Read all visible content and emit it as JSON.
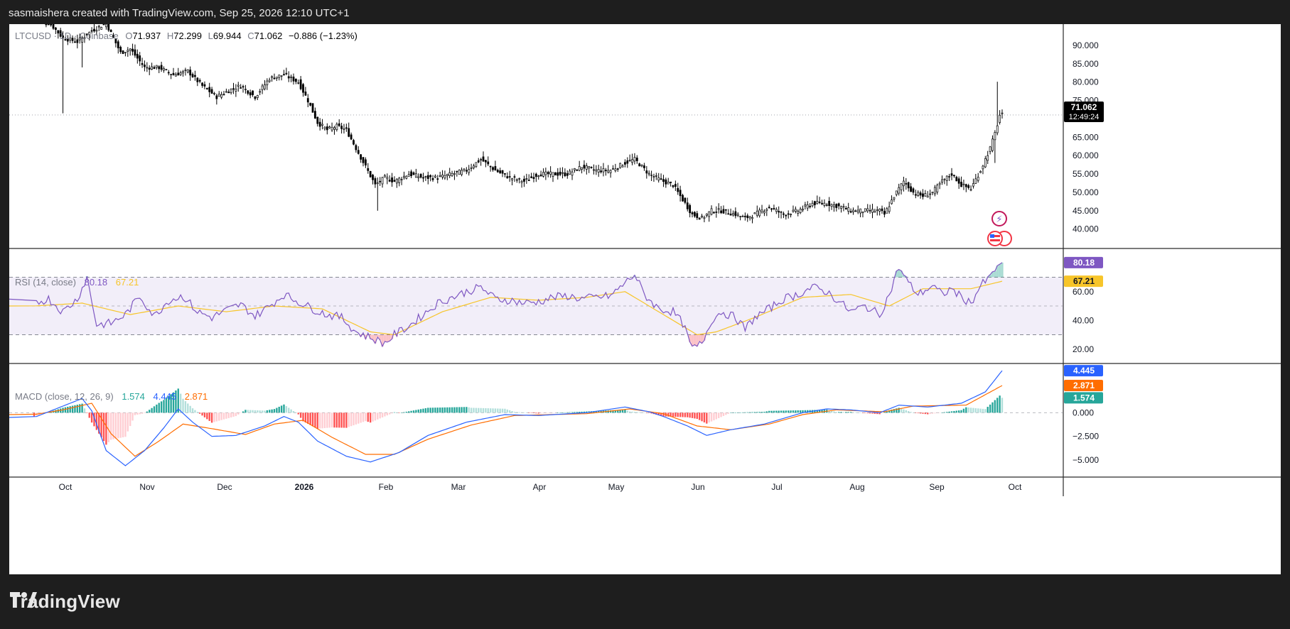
{
  "header": {
    "caption": "sasmaishera created with TradingView.com, Sep 25, 2026 12:10 UTC+1"
  },
  "brand": {
    "logo_text": "TradingView",
    "icon": "tradingview-logo-icon"
  },
  "legend": {
    "symbol": "LTCUSD · 1D · Coinbase",
    "o_label": "O",
    "o": "71.937",
    "h_label": "H",
    "h": "72.299",
    "l_label": "L",
    "l": "69.944",
    "c_label": "C",
    "c": "71.062",
    "change": "−0.886 (−1.23%)"
  },
  "price_tag": {
    "value": "71.062",
    "countdown": "12:49:24"
  },
  "rsi_legend": {
    "label": "RSI (14, close)",
    "rsi": "80.18",
    "ma": "67.21"
  },
  "macd_legend": {
    "label": "MACD (close, 12, 26, 9)",
    "hist": "1.574",
    "macd": "4.445",
    "signal": "2.871"
  },
  "colors": {
    "up": "#089981",
    "down": "#f23645",
    "candle": "#000000",
    "rsi": "#7e57c2",
    "rsi_ma": "#f7c52a",
    "macd": "#2962ff",
    "signal": "#ff6d00",
    "hist_up_strong": "#26a69a",
    "hist_up_weak": "#b2dfdb",
    "hist_down_strong": "#ff5252",
    "hist_down_weak": "#ffcdd2"
  },
  "chart_data": [
    {
      "type": "candlestick",
      "title": "LTCUSD · 1D · Coinbase",
      "x_axis": [
        "Oct",
        "Nov",
        "Dec",
        "2026",
        "Feb",
        "Mar",
        "Apr",
        "May",
        "Jun",
        "Jul",
        "Aug",
        "Sep",
        "Oct"
      ],
      "y_ticks": [
        "90.000",
        "85.000",
        "80.000",
        "75.000",
        "70.000",
        "65.000",
        "60.000",
        "55.000",
        "50.000",
        "45.000",
        "40.000"
      ],
      "ylim": [
        35.5,
        95
      ],
      "last_price": 71.062,
      "series": [
        {
          "name": "LTCUSD",
          "close_anchors": [
            [
              0,
              100
            ],
            [
              8,
              95
            ],
            [
              12,
              92
            ],
            [
              18,
              91
            ],
            [
              24,
              94
            ],
            [
              30,
              96
            ],
            [
              36,
              88
            ],
            [
              40,
              89
            ],
            [
              46,
              84
            ],
            [
              52,
              84
            ],
            [
              58,
              82
            ],
            [
              64,
              83
            ],
            [
              70,
              79
            ],
            [
              76,
              76
            ],
            [
              82,
              78
            ],
            [
              86,
              79
            ],
            [
              92,
              76
            ],
            [
              98,
              81
            ],
            [
              104,
              82
            ],
            [
              110,
              80
            ],
            [
              114,
              75
            ],
            [
              118,
              69
            ],
            [
              122,
              67
            ],
            [
              126,
              68
            ],
            [
              130,
              67
            ],
            [
              134,
              62
            ],
            [
              138,
              57
            ],
            [
              142,
              52
            ],
            [
              146,
              54
            ],
            [
              150,
              53
            ],
            [
              156,
              55
            ],
            [
              162,
              54
            ],
            [
              168,
              54
            ],
            [
              174,
              55
            ],
            [
              180,
              56
            ],
            [
              186,
              59
            ],
            [
              192,
              56
            ],
            [
              198,
              54
            ],
            [
              204,
              53
            ],
            [
              210,
              55
            ],
            [
              216,
              55
            ],
            [
              222,
              55
            ],
            [
              228,
              57
            ],
            [
              234,
              56
            ],
            [
              240,
              56
            ],
            [
              246,
              58
            ],
            [
              250,
              59
            ],
            [
              256,
              55
            ],
            [
              262,
              53
            ],
            [
              266,
              52
            ],
            [
              270,
              48
            ],
            [
              274,
              44
            ],
            [
              278,
              43
            ],
            [
              282,
              45
            ],
            [
              286,
              45
            ],
            [
              292,
              44
            ],
            [
              296,
              43
            ],
            [
              300,
              44
            ],
            [
              306,
              46
            ],
            [
              312,
              44
            ],
            [
              318,
              45
            ],
            [
              324,
              47
            ],
            [
              330,
              47
            ],
            [
              336,
              46
            ],
            [
              340,
              45
            ],
            [
              346,
              45
            ],
            [
              352,
              45
            ],
            [
              354,
              44
            ],
            [
              358,
              49
            ],
            [
              362,
              53
            ],
            [
              366,
              50
            ],
            [
              370,
              49
            ],
            [
              374,
              50
            ],
            [
              378,
              53
            ],
            [
              382,
              55
            ],
            [
              386,
              52
            ],
            [
              390,
              51
            ],
            [
              394,
              56
            ],
            [
              398,
              62
            ],
            [
              400,
              66
            ],
            [
              402,
              71
            ],
            [
              403,
              71.06
            ]
          ]
        }
      ]
    },
    {
      "type": "line",
      "title": "RSI (14, close)",
      "y_ticks": [
        "80.18",
        "67.21",
        "60.00",
        "40.00",
        "20.00"
      ],
      "ylim": [
        10,
        90
      ],
      "bands": [
        70,
        50,
        30
      ],
      "series": [
        {
          "name": "RSI",
          "values_anchors": [
            [
              0,
              52
            ],
            [
              6,
              55
            ],
            [
              12,
              46
            ],
            [
              18,
              55
            ],
            [
              22,
              70
            ],
            [
              26,
              37
            ],
            [
              32,
              38
            ],
            [
              38,
              44
            ],
            [
              44,
              57
            ],
            [
              50,
              43
            ],
            [
              56,
              54
            ],
            [
              62,
              57
            ],
            [
              68,
              46
            ],
            [
              74,
              42
            ],
            [
              80,
              47
            ],
            [
              86,
              51
            ],
            [
              92,
              43
            ],
            [
              98,
              50
            ],
            [
              104,
              58
            ],
            [
              110,
              53
            ],
            [
              116,
              48
            ],
            [
              122,
              44
            ],
            [
              128,
              42
            ],
            [
              134,
              32
            ],
            [
              140,
              28
            ],
            [
              146,
              24
            ],
            [
              150,
              30
            ],
            [
              156,
              36
            ],
            [
              162,
              44
            ],
            [
              168,
              52
            ],
            [
              174,
              56
            ],
            [
              180,
              60
            ],
            [
              186,
              63
            ],
            [
              192,
              55
            ],
            [
              198,
              54
            ],
            [
              204,
              52
            ],
            [
              210,
              53
            ],
            [
              216,
              56
            ],
            [
              222,
              57
            ],
            [
              228,
              55
            ],
            [
              234,
              56
            ],
            [
              240,
              57
            ],
            [
              246,
              66
            ],
            [
              250,
              72
            ],
            [
              254,
              58
            ],
            [
              260,
              48
            ],
            [
              266,
              46
            ],
            [
              270,
              38
            ],
            [
              274,
              20
            ],
            [
              278,
              24
            ],
            [
              282,
              40
            ],
            [
              286,
              46
            ],
            [
              292,
              42
            ],
            [
              296,
              34
            ],
            [
              300,
              42
            ],
            [
              306,
              48
            ],
            [
              312,
              55
            ],
            [
              318,
              58
            ],
            [
              324,
              63
            ],
            [
              330,
              60
            ],
            [
              336,
              52
            ],
            [
              340,
              46
            ],
            [
              346,
              50
            ],
            [
              352,
              44
            ],
            [
              356,
              58
            ],
            [
              360,
              77
            ],
            [
              364,
              66
            ],
            [
              368,
              58
            ],
            [
              374,
              64
            ],
            [
              378,
              58
            ],
            [
              382,
              62
            ],
            [
              386,
              56
            ],
            [
              390,
              52
            ],
            [
              394,
              64
            ],
            [
              398,
              70
            ],
            [
              401,
              78
            ],
            [
              403,
              80.18
            ]
          ]
        },
        {
          "name": "RSI-based MA",
          "values_anchors": [
            [
              0,
              50
            ],
            [
              20,
              52
            ],
            [
              40,
              44
            ],
            [
              60,
              50
            ],
            [
              80,
              46
            ],
            [
              100,
              50
            ],
            [
              120,
              48
            ],
            [
              140,
              32
            ],
            [
              150,
              30
            ],
            [
              170,
              46
            ],
            [
              190,
              56
            ],
            [
              210,
              54
            ],
            [
              230,
              56
            ],
            [
              246,
              60
            ],
            [
              262,
              44
            ],
            [
              276,
              30
            ],
            [
              284,
              32
            ],
            [
              300,
              42
            ],
            [
              320,
              56
            ],
            [
              340,
              58
            ],
            [
              356,
              50
            ],
            [
              370,
              62
            ],
            [
              390,
              62
            ],
            [
              403,
              67.21
            ]
          ]
        }
      ]
    },
    {
      "type": "line",
      "title": "MACD (close, 12, 26, 9)",
      "y_ticks": [
        "4.445",
        "2.871",
        "1.574",
        "0.000",
        "−2.500",
        "−5.000"
      ],
      "ylim": [
        -6.8,
        5.2
      ],
      "series": [
        {
          "name": "MACD",
          "values_anchors": [
            [
              0,
              -0.5
            ],
            [
              10,
              0.5
            ],
            [
              20,
              1.5
            ],
            [
              24,
              0.2
            ],
            [
              30,
              -4
            ],
            [
              38,
              -5.6
            ],
            [
              46,
              -4
            ],
            [
              54,
              -1.6
            ],
            [
              60,
              0.4
            ],
            [
              66,
              -1
            ],
            [
              74,
              -2.5
            ],
            [
              84,
              -2.4
            ],
            [
              96,
              -1.4
            ],
            [
              104,
              -0.4
            ],
            [
              110,
              -1
            ],
            [
              118,
              -3
            ],
            [
              130,
              -4.6
            ],
            [
              140,
              -5.2
            ],
            [
              152,
              -4.2
            ],
            [
              164,
              -2.4
            ],
            [
              180,
              -1
            ],
            [
              196,
              -0.2
            ],
            [
              210,
              -0.3
            ],
            [
              230,
              0
            ],
            [
              246,
              0.6
            ],
            [
              256,
              0.1
            ],
            [
              262,
              -0.4
            ],
            [
              272,
              -1.4
            ],
            [
              280,
              -2.4
            ],
            [
              290,
              -1.8
            ],
            [
              304,
              -1.2
            ],
            [
              320,
              0
            ],
            [
              330,
              0.4
            ],
            [
              340,
              0.3
            ],
            [
              352,
              0
            ],
            [
              360,
              0.8
            ],
            [
              372,
              0.6
            ],
            [
              386,
              1
            ],
            [
              396,
              2.2
            ],
            [
              403,
              4.445
            ]
          ]
        },
        {
          "name": "Signal",
          "values_anchors": [
            [
              0,
              -0.2
            ],
            [
              12,
              0.3
            ],
            [
              24,
              1
            ],
            [
              32,
              -2.2
            ],
            [
              42,
              -4.6
            ],
            [
              52,
              -3
            ],
            [
              62,
              -1.2
            ],
            [
              72,
              -1.6
            ],
            [
              88,
              -2.3
            ],
            [
              100,
              -1.2
            ],
            [
              112,
              -0.8
            ],
            [
              124,
              -2.6
            ],
            [
              138,
              -4.4
            ],
            [
              150,
              -4.4
            ],
            [
              164,
              -2.8
            ],
            [
              182,
              -1.3
            ],
            [
              200,
              -0.3
            ],
            [
              230,
              -0.1
            ],
            [
              248,
              0.4
            ],
            [
              262,
              -0.1
            ],
            [
              276,
              -1.4
            ],
            [
              290,
              -1.8
            ],
            [
              306,
              -1.2
            ],
            [
              320,
              -0.2
            ],
            [
              334,
              0.3
            ],
            [
              354,
              0.1
            ],
            [
              366,
              0.7
            ],
            [
              388,
              0.8
            ],
            [
              403,
              2.871
            ]
          ]
        },
        {
          "name": "Histogram",
          "last": 1.574
        }
      ]
    }
  ]
}
